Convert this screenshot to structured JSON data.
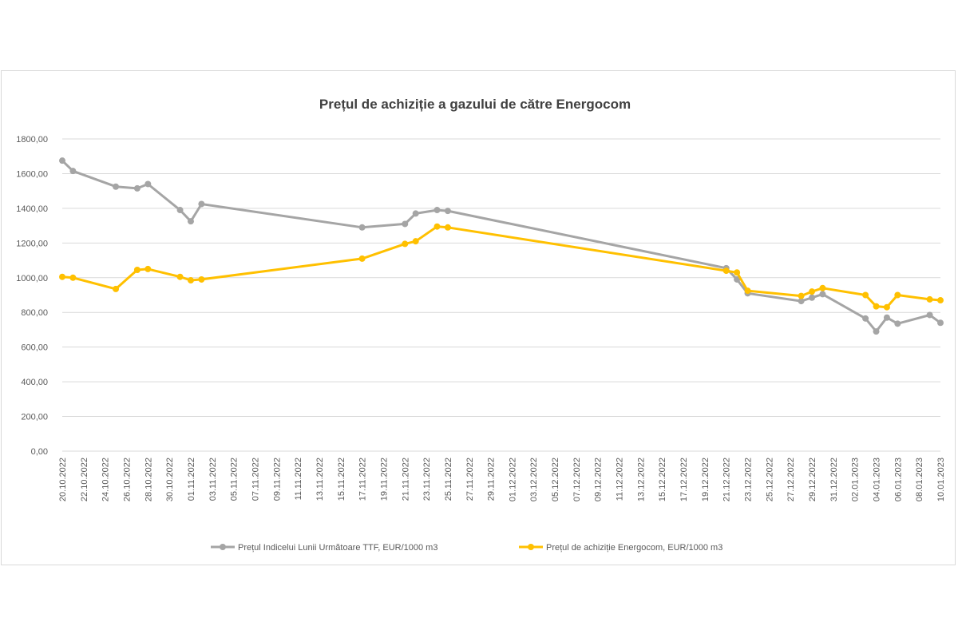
{
  "chart_data": {
    "type": "line",
    "title": "Prețul de achiziție a gazului de către Energocom",
    "xlabel": "",
    "ylabel": "",
    "ylim": [
      0,
      1800
    ],
    "yticks": [
      "0,00",
      "200,00",
      "400,00",
      "600,00",
      "800,00",
      "1000,00",
      "1200,00",
      "1400,00",
      "1600,00",
      "1800,00"
    ],
    "xlim": [
      "2022-10-20",
      "2023-01-10"
    ],
    "xticks": [
      {
        "date": "2022-10-20",
        "label": "20.10.2022"
      },
      {
        "date": "2022-10-22",
        "label": "22.10.2022"
      },
      {
        "date": "2022-10-24",
        "label": "24.10.2022"
      },
      {
        "date": "2022-10-26",
        "label": "26.10.2022"
      },
      {
        "date": "2022-10-28",
        "label": "28.10.2022"
      },
      {
        "date": "2022-10-30",
        "label": "30.10.2022"
      },
      {
        "date": "2022-11-01",
        "label": "01.11.2022"
      },
      {
        "date": "2022-11-03",
        "label": "03.11.2022"
      },
      {
        "date": "2022-11-05",
        "label": "05.11.2022"
      },
      {
        "date": "2022-11-07",
        "label": "07.11.2022"
      },
      {
        "date": "2022-11-09",
        "label": "09.11.2022"
      },
      {
        "date": "2022-11-11",
        "label": "11.11.2022"
      },
      {
        "date": "2022-11-13",
        "label": "13.11.2022"
      },
      {
        "date": "2022-11-15",
        "label": "15.11.2022"
      },
      {
        "date": "2022-11-17",
        "label": "17.11.2022"
      },
      {
        "date": "2022-11-19",
        "label": "19.11.2022"
      },
      {
        "date": "2022-11-21",
        "label": "21.11.2022"
      },
      {
        "date": "2022-11-23",
        "label": "23.11.2022"
      },
      {
        "date": "2022-11-25",
        "label": "25.11.2022"
      },
      {
        "date": "2022-11-27",
        "label": "27.11.2022"
      },
      {
        "date": "2022-11-29",
        "label": "29.11.2022"
      },
      {
        "date": "2022-12-01",
        "label": "01.12.2022"
      },
      {
        "date": "2022-12-03",
        "label": "03.12.2022"
      },
      {
        "date": "2022-12-05",
        "label": "05.12.2022"
      },
      {
        "date": "2022-12-07",
        "label": "07.12.2022"
      },
      {
        "date": "2022-12-09",
        "label": "09.12.2022"
      },
      {
        "date": "2022-12-11",
        "label": "11.12.2022"
      },
      {
        "date": "2022-12-13",
        "label": "13.12.2022"
      },
      {
        "date": "2022-12-15",
        "label": "15.12.2022"
      },
      {
        "date": "2022-12-17",
        "label": "17.12.2022"
      },
      {
        "date": "2022-12-19",
        "label": "19.12.2022"
      },
      {
        "date": "2022-12-21",
        "label": "21.12.2022"
      },
      {
        "date": "2022-12-23",
        "label": "23.12.2022"
      },
      {
        "date": "2022-12-25",
        "label": "25.12.2022"
      },
      {
        "date": "2022-12-27",
        "label": "27.12.2022"
      },
      {
        "date": "2022-12-29",
        "label": "29.12.2022"
      },
      {
        "date": "2022-12-31",
        "label": "31.12.2022"
      },
      {
        "date": "2023-01-02",
        "label": "02.01.2023"
      },
      {
        "date": "2023-01-04",
        "label": "04.01.2023"
      },
      {
        "date": "2023-01-06",
        "label": "06.01.2023"
      },
      {
        "date": "2023-01-08",
        "label": "08.01.2023"
      },
      {
        "date": "2023-01-10",
        "label": "10.01.2023"
      }
    ],
    "grid": true,
    "legend_position": "bottom",
    "series": [
      {
        "name": "Prețul Indicelui Lunii Următoare TTF,  EUR/1000 m3",
        "color": "#a5a5a5",
        "points": [
          {
            "x": "2022-10-20",
            "y": 1675
          },
          {
            "x": "2022-10-21",
            "y": 1615
          },
          {
            "x": "2022-10-25",
            "y": 1525
          },
          {
            "x": "2022-10-27",
            "y": 1515
          },
          {
            "x": "2022-10-28",
            "y": 1540
          },
          {
            "x": "2022-10-31",
            "y": 1390
          },
          {
            "x": "2022-11-01",
            "y": 1325
          },
          {
            "x": "2022-11-02",
            "y": 1425
          },
          {
            "x": "2022-11-17",
            "y": 1290
          },
          {
            "x": "2022-11-21",
            "y": 1310
          },
          {
            "x": "2022-11-22",
            "y": 1370
          },
          {
            "x": "2022-11-24",
            "y": 1390
          },
          {
            "x": "2022-11-25",
            "y": 1385
          },
          {
            "x": "2022-12-21",
            "y": 1055
          },
          {
            "x": "2022-12-22",
            "y": 990
          },
          {
            "x": "2022-12-23",
            "y": 910
          },
          {
            "x": "2022-12-28",
            "y": 865
          },
          {
            "x": "2022-12-29",
            "y": 885
          },
          {
            "x": "2022-12-30",
            "y": 905
          },
          {
            "x": "2023-01-03",
            "y": 765
          },
          {
            "x": "2023-01-04",
            "y": 690
          },
          {
            "x": "2023-01-05",
            "y": 770
          },
          {
            "x": "2023-01-06",
            "y": 735
          },
          {
            "x": "2023-01-09",
            "y": 785
          },
          {
            "x": "2023-01-10",
            "y": 740
          }
        ]
      },
      {
        "name": "Prețul de achiziție Energocom, EUR/1000 m3",
        "color": "#ffc000",
        "points": [
          {
            "x": "2022-10-20",
            "y": 1005
          },
          {
            "x": "2022-10-21",
            "y": 1000
          },
          {
            "x": "2022-10-25",
            "y": 935
          },
          {
            "x": "2022-10-27",
            "y": 1045
          },
          {
            "x": "2022-10-28",
            "y": 1050
          },
          {
            "x": "2022-10-31",
            "y": 1005
          },
          {
            "x": "2022-11-01",
            "y": 985
          },
          {
            "x": "2022-11-02",
            "y": 990
          },
          {
            "x": "2022-11-17",
            "y": 1110
          },
          {
            "x": "2022-11-21",
            "y": 1195
          },
          {
            "x": "2022-11-22",
            "y": 1210
          },
          {
            "x": "2022-11-24",
            "y": 1295
          },
          {
            "x": "2022-11-25",
            "y": 1290
          },
          {
            "x": "2022-12-21",
            "y": 1040
          },
          {
            "x": "2022-12-22",
            "y": 1030
          },
          {
            "x": "2022-12-23",
            "y": 925
          },
          {
            "x": "2022-12-28",
            "y": 895
          },
          {
            "x": "2022-12-29",
            "y": 920
          },
          {
            "x": "2022-12-30",
            "y": 940
          },
          {
            "x": "2023-01-03",
            "y": 900
          },
          {
            "x": "2023-01-04",
            "y": 835
          },
          {
            "x": "2023-01-05",
            "y": 830
          },
          {
            "x": "2023-01-06",
            "y": 900
          },
          {
            "x": "2023-01-09",
            "y": 875
          },
          {
            "x": "2023-01-10",
            "y": 870
          }
        ]
      }
    ]
  }
}
